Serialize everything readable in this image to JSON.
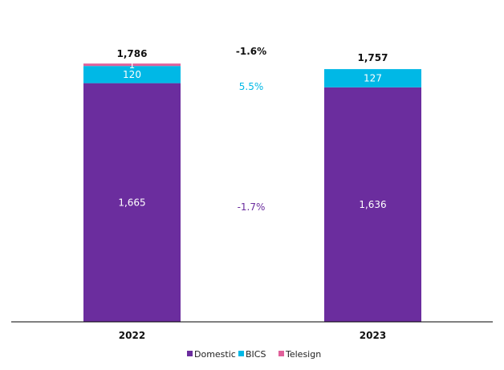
{
  "chart_data": {
    "type": "bar",
    "stacked": true,
    "categories": [
      "2022",
      "2023"
    ],
    "series": [
      {
        "name": "Domestic",
        "color": "#6b2d9e",
        "values": [
          1665,
          1636
        ]
      },
      {
        "name": "BICS",
        "color": "#00b8e6",
        "values": [
          120,
          127
        ]
      },
      {
        "name": "Telesign",
        "color": "#e0609a",
        "values": [
          1,
          0
        ]
      }
    ],
    "segment_labels": [
      [
        "1,665",
        "1,636"
      ],
      [
        "120",
        "127"
      ],
      [
        "1",
        ""
      ]
    ],
    "totals": [
      1786,
      1757
    ],
    "total_labels": [
      "1,786",
      "1,757"
    ],
    "annotations": {
      "total_change": "-1.6%",
      "bics_change": "5.5%",
      "domestic_change": "-1.7%"
    },
    "colors": {
      "axis": "#000000",
      "bics_change": "#00b8e6",
      "domestic_change": "#6b2d9e"
    },
    "ylim": [
      0,
      1786
    ],
    "legend_position": "bottom",
    "title": "",
    "xlabel": "",
    "ylabel": ""
  }
}
